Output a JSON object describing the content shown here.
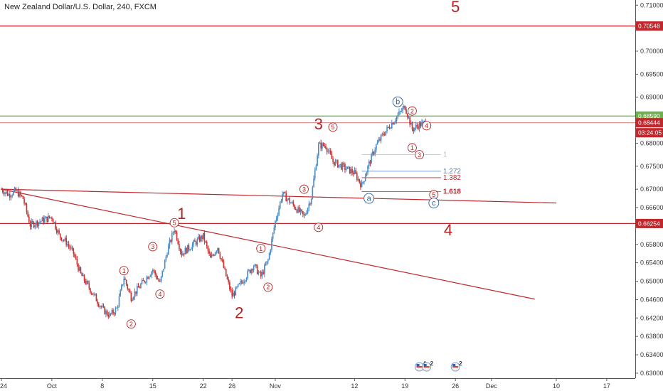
{
  "chart_title": "New Zealand Dollar/U.S. Dollar, 240, FXCM",
  "colors": {
    "up": "#4a8bc2",
    "down": "#c83232",
    "wave": "#b22222",
    "abc": "#2b5fa0",
    "resistance_green": "#6bb04a",
    "trendline": "#c0282d",
    "fib_blue": "#4a7fc4"
  },
  "chart_data": {
    "type": "candlestick",
    "instrument": "New Zealand Dollar/U.S. Dollar",
    "timeframe": "240",
    "broker": "FXCM",
    "ylim": [
      0.6303,
      0.7102
    ],
    "y_ticks": [
      "0.71000",
      "0.70500",
      "0.70000",
      "0.69500",
      "0.69000",
      "0.68500",
      "0.68000",
      "0.67500",
      "0.67000",
      "0.66600",
      "0.66200",
      "0.65800",
      "0.65400",
      "0.65000",
      "0.64600",
      "0.64200",
      "0.63800",
      "0.63400",
      "0.63000"
    ],
    "x_ticks": [
      {
        "label": "24",
        "date": "2018-09-24"
      },
      {
        "label": "Oct",
        "date": "2018-10-01"
      },
      {
        "label": "8",
        "date": "2018-10-08"
      },
      {
        "label": "15",
        "date": "2018-10-15"
      },
      {
        "label": "22",
        "date": "2018-10-22"
      },
      {
        "label": "26",
        "date": "2018-10-26"
      },
      {
        "label": "Nov",
        "date": "2018-11-01"
      },
      {
        "label": "12",
        "date": "2018-11-12"
      },
      {
        "label": "19",
        "date": "2018-11-19"
      },
      {
        "label": "26",
        "date": "2018-11-26"
      },
      {
        "label": "Dec",
        "date": "2018-12-01"
      },
      {
        "label": "10",
        "date": "2018-12-10"
      },
      {
        "label": "17",
        "date": "2018-12-17"
      }
    ],
    "price_path": [
      [
        "2018-09-24",
        0.67
      ],
      [
        "2018-09-25",
        0.6688
      ],
      [
        "2018-09-26",
        0.6696
      ],
      [
        "2018-09-27",
        0.668
      ],
      [
        "2018-09-28",
        0.6622
      ],
      [
        "2018-10-01",
        0.664
      ],
      [
        "2018-10-02",
        0.66
      ],
      [
        "2018-10-03",
        0.6585
      ],
      [
        "2018-10-04",
        0.656
      ],
      [
        "2018-10-05",
        0.6515
      ],
      [
        "2018-10-08",
        0.644
      ],
      [
        "2018-10-09",
        0.6425
      ],
      [
        "2018-10-10",
        0.644
      ],
      [
        "2018-10-11",
        0.6508
      ],
      [
        "2018-10-12",
        0.6465
      ],
      [
        "2018-10-15",
        0.6525
      ],
      [
        "2018-10-16",
        0.6495
      ],
      [
        "2018-10-17",
        0.6565
      ],
      [
        "2018-10-18",
        0.6615
      ],
      [
        "2018-10-19",
        0.656
      ],
      [
        "2018-10-22",
        0.6598
      ],
      [
        "2018-10-23",
        0.6548
      ],
      [
        "2018-10-24",
        0.6575
      ],
      [
        "2018-10-25",
        0.652
      ],
      [
        "2018-10-26",
        0.6468
      ],
      [
        "2018-10-29",
        0.6535
      ],
      [
        "2018-10-30",
        0.651
      ],
      [
        "2018-10-31",
        0.6545
      ],
      [
        "2018-11-01",
        0.663
      ],
      [
        "2018-11-02",
        0.669
      ],
      [
        "2018-11-05",
        0.664
      ],
      [
        "2018-11-06",
        0.6682
      ],
      [
        "2018-11-07",
        0.6795
      ],
      [
        "2018-11-08",
        0.6795
      ],
      [
        "2018-11-09",
        0.676
      ],
      [
        "2018-11-12",
        0.6735
      ],
      [
        "2018-11-13",
        0.6708
      ],
      [
        "2018-11-14",
        0.6755
      ],
      [
        "2018-11-15",
        0.6795
      ],
      [
        "2018-11-16",
        0.682
      ],
      [
        "2018-11-19",
        0.688
      ],
      [
        "2018-11-20",
        0.683
      ],
      [
        "2018-11-21",
        0.684
      ],
      [
        "2018-11-22",
        0.6846
      ]
    ],
    "horizontal_levels": [
      {
        "price": 0.70548,
        "label": "0.70548",
        "color": "#c0282d",
        "style": "solid"
      },
      {
        "price": 0.6859,
        "label": "0.68590",
        "color": "#6bb04a",
        "style": "solid"
      },
      {
        "price": 0.68444,
        "label": "0.68444",
        "color": "#c0282d",
        "style": "thin"
      },
      {
        "price": 0.66254,
        "label": "0.66254",
        "color": "#c0282d",
        "style": "solid"
      }
    ],
    "countdown_label": "03:24:05",
    "trendlines": [
      {
        "from": [
          "2018-09-24",
          0.67
        ],
        "to": [
          "2018-12-10",
          0.667
        ],
        "color": "#c0282d"
      },
      {
        "from": [
          "2018-09-24",
          0.67
        ],
        "to": [
          "2018-12-07",
          0.6461
        ],
        "color": "#c0282d"
      }
    ],
    "fib_levels": [
      {
        "label": "1",
        "price": 0.6775,
        "x_from": "2018-11-13",
        "x_to": "2018-11-24",
        "color": "#bbbbbb"
      },
      {
        "label": "1.272",
        "price": 0.6739,
        "x_from": "2018-11-13",
        "x_to": "2018-11-24",
        "color": "#4a7fc4"
      },
      {
        "label": "1.382",
        "price": 0.6725,
        "x_from": "2018-11-13",
        "x_to": "2018-11-24",
        "color": "#c0282d"
      },
      {
        "label": "1.618",
        "price": 0.6695,
        "x_from": "2018-11-13",
        "x_to": "2018-11-24",
        "color": "#c0282d"
      }
    ],
    "wave_labels_major": [
      {
        "text": "5",
        "date": "2018-11-26",
        "price": 0.7085
      },
      {
        "text": "3",
        "date": "2018-11-07",
        "price": 0.683
      },
      {
        "text": "1",
        "date": "2018-10-19",
        "price": 0.6635
      },
      {
        "text": "2",
        "date": "2018-10-27",
        "price": 0.642
      },
      {
        "text": "4",
        "date": "2018-11-25",
        "price": 0.66
      }
    ],
    "wave_labels_minor": [
      {
        "text": "1",
        "date": "2018-10-11",
        "price": 0.6523
      },
      {
        "text": "2",
        "date": "2018-10-12",
        "price": 0.6407
      },
      {
        "text": "3",
        "date": "2018-10-15",
        "price": 0.6575
      },
      {
        "text": "4",
        "date": "2018-10-16",
        "price": 0.6472
      },
      {
        "text": "5",
        "date": "2018-10-18",
        "price": 0.6627
      },
      {
        "text": "1",
        "date": "2018-10-30",
        "price": 0.6571
      },
      {
        "text": "2",
        "date": "2018-10-31",
        "price": 0.6487
      },
      {
        "text": "3",
        "date": "2018-11-05",
        "price": 0.67
      },
      {
        "text": "4",
        "date": "2018-11-07",
        "price": 0.6617
      },
      {
        "text": "5",
        "date": "2018-11-09",
        "price": 0.6835
      },
      {
        "text": "1",
        "date": "2018-11-20",
        "price": 0.679
      },
      {
        "text": "2",
        "date": "2018-11-20",
        "price": 0.687
      },
      {
        "text": "3",
        "date": "2018-11-21",
        "price": 0.6775
      },
      {
        "text": "4",
        "date": "2018-11-22",
        "price": 0.6838
      },
      {
        "text": "5",
        "date": "2018-11-23",
        "price": 0.6688
      }
    ],
    "abc_labels": [
      {
        "text": "a",
        "date": "2018-11-14",
        "price": 0.668
      },
      {
        "text": "b",
        "date": "2018-11-18",
        "price": 0.689
      },
      {
        "text": "c",
        "date": "2018-11-23",
        "price": 0.667
      }
    ],
    "event_flags": [
      {
        "date": "2018-11-21",
        "count": "4"
      },
      {
        "date": "2018-11-22",
        "count": "2"
      },
      {
        "date": "2018-11-26",
        "count": "2"
      }
    ]
  }
}
